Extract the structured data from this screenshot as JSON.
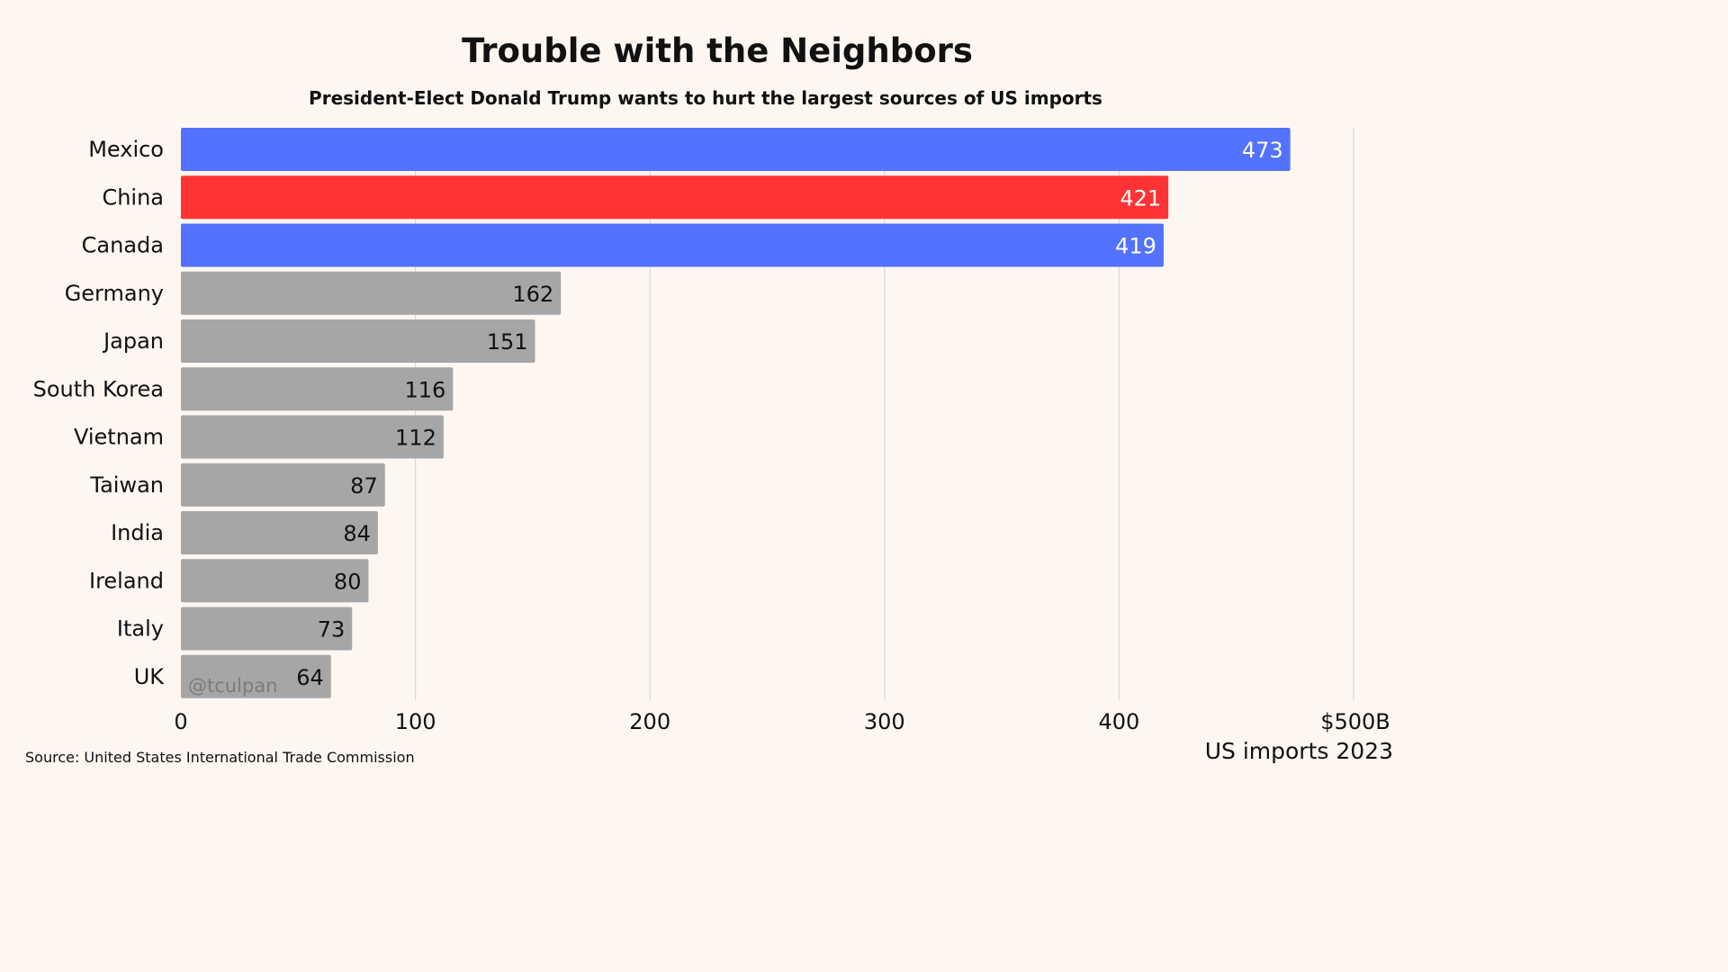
{
  "title": "Trouble with the Neighbors",
  "subtitle": "President-Elect Donald Trump wants to hurt the largest sources of US imports",
  "source": "Source: United States International Trade Commission",
  "watermark": "@tculpan",
  "colors": {
    "background": "#fdf6f1",
    "highlight_blue": "#5272ff",
    "highlight_red": "#ff3333",
    "default_gray": "#a6a6a6",
    "grid": "#d9d9d9"
  },
  "chart_data": {
    "type": "bar",
    "orientation": "horizontal",
    "title": "Trouble with the Neighbors",
    "subtitle": "President-Elect Donald Trump wants to hurt the largest sources of US imports",
    "xlabel": "US imports 2023",
    "categories": [
      "Mexico",
      "China",
      "Canada",
      "Germany",
      "Japan",
      "South Korea",
      "Vietnam",
      "Taiwan",
      "India",
      "Ireland",
      "Italy",
      "UK"
    ],
    "values": [
      473,
      421,
      419,
      162,
      151,
      116,
      112,
      87,
      84,
      80,
      73,
      64
    ],
    "bar_colors": [
      "#5272ff",
      "#ff3333",
      "#5272ff",
      "#a6a6a6",
      "#a6a6a6",
      "#a6a6a6",
      "#a6a6a6",
      "#a6a6a6",
      "#a6a6a6",
      "#a6a6a6",
      "#a6a6a6",
      "#a6a6a6"
    ],
    "label_colors": [
      "#ffffff",
      "#ffffff",
      "#ffffff",
      "#111111",
      "#111111",
      "#111111",
      "#111111",
      "#111111",
      "#111111",
      "#111111",
      "#111111",
      "#111111"
    ],
    "xlim": [
      0,
      500
    ],
    "xticks": [
      0,
      100,
      200,
      300,
      400,
      500
    ],
    "xtick_labels": [
      "0",
      "100",
      "200",
      "300",
      "400",
      "$500B"
    ],
    "grid": true,
    "legend": "none"
  }
}
